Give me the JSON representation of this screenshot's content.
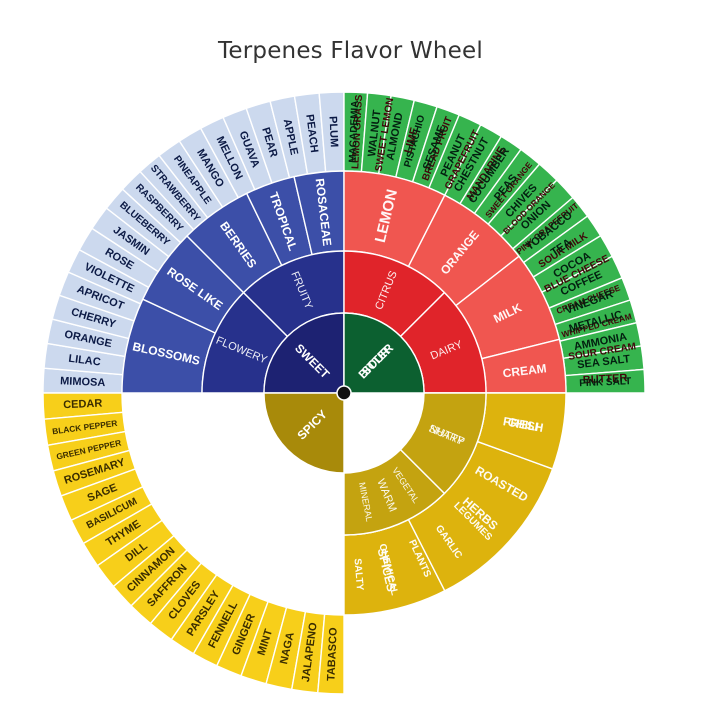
{
  "title": "Terpenes Flavor Wheel",
  "palette": {
    "sweet": {
      "center": "#1d2272",
      "mid": "#27318c",
      "outer": "#3c4fa8",
      "leaf": "#ccd9ee",
      "ink": "#0c1a45"
    },
    "sour": {
      "center": "#b8141c",
      "mid": "#e0242a",
      "outer": "#f05650",
      "leaf": "#f7a3a1",
      "ink": "#40070a"
    },
    "bitter": {
      "center": "#0c6030",
      "mid": "#118a3d",
      "outer": "#23a54b",
      "leaf": "#36b44e",
      "ink": "#032010"
    },
    "spicy": {
      "center": "#a88a0a",
      "mid": "#c4a310",
      "outer": "#ddb30d",
      "leaf": "#f7cf1a",
      "ink": "#3a2d00"
    }
  },
  "center_text": [
    "SWEET",
    "SOUR",
    "BITTER",
    "SPICY"
  ],
  "ring2": [
    {
      "label": "FLOWERY",
      "q": 0,
      "a1": 0,
      "a2": 45
    },
    {
      "label": "FRUITY",
      "q": 0,
      "a1": 45,
      "a2": 90
    },
    {
      "label": "CITRUS",
      "q": 1,
      "a1": 0,
      "a2": 45
    },
    {
      "label": "DAIRY",
      "q": 1,
      "a1": 45,
      "a2": 90
    },
    {
      "label": "NUTTY",
      "q": 2,
      "a1": 90,
      "a2": 135
    },
    {
      "label": "VEGETAL",
      "q": 2,
      "a1": 135,
      "a2": 157.5
    },
    {
      "label": "MINERAL",
      "q": 2,
      "a1": 157.5,
      "a2": 180
    },
    {
      "label": "WARM",
      "q": 3,
      "a1": 90,
      "a2": 135
    },
    {
      "label": "SHARP",
      "q": 3,
      "a1": 135,
      "a2": 180
    }
  ],
  "ring3": [
    {
      "label": "BLOSSOMS",
      "q": 0,
      "a1": 0,
      "a2": 25
    },
    {
      "label": "ROSE LIKE",
      "q": 0,
      "a1": 25,
      "a2": 45
    },
    {
      "label": "BERRIES",
      "q": 0,
      "a1": 45,
      "a2": 64
    },
    {
      "label": "TROPICAL",
      "q": 0,
      "a1": 64,
      "a2": 77
    },
    {
      "label": "ROSACEAE",
      "q": 0,
      "a1": 77,
      "a2": 90
    },
    {
      "label": "LEMON",
      "q": 1,
      "a1": 0,
      "a2": 27
    },
    {
      "label": "ORANGE",
      "q": 1,
      "a1": 27,
      "a2": 52
    },
    {
      "label": "MILK",
      "q": 1,
      "a1": 52,
      "a2": 76
    },
    {
      "label": "CREAM",
      "q": 1,
      "a1": 76,
      "a2": 90
    },
    {
      "label": "FRESH",
      "q": 2,
      "a1": 90,
      "a2": 110
    },
    {
      "label": "ROASTED",
      "q": 2,
      "a1": 110,
      "a2": 130
    },
    {
      "label": "LEGUMES",
      "q": 2,
      "a1": 130,
      "a2": 140
    },
    {
      "label": "GARLIC",
      "q": 2,
      "a1": 140,
      "a2": 150
    },
    {
      "label": "PLANTS",
      "q": 2,
      "a1": 150,
      "a2": 161
    },
    {
      "label": "CHEMICAL",
      "q": 2,
      "a1": 161,
      "a2": 171
    },
    {
      "label": "SALTY",
      "q": 2,
      "a1": 171,
      "a2": 180
    },
    {
      "label": "SPICES",
      "q": 3,
      "a1": 90,
      "a2": 117
    },
    {
      "label": "HERBS",
      "q": 3,
      "a1": 117,
      "a2": 160
    },
    {
      "label": "CHILI",
      "q": 3,
      "a1": 160,
      "a2": 180
    }
  ],
  "ring4": [
    {
      "q": 0,
      "items": [
        "MIMOSA",
        "LILAC",
        "ORANGE",
        "CHERRY",
        "APRICOT",
        "VIOLETTE",
        "ROSE",
        "JASMIN",
        "BLUEBERRY",
        "RASPBERRY",
        "STRAWBERRY",
        "PINEAPPLE",
        "MANGO",
        "MELLON",
        "GUAVA",
        "PEAR",
        "APPLE",
        "PEACH",
        "PLUM"
      ]
    },
    {
      "q": 1,
      "items": [
        "LEMON GRASS",
        "SWEET LEMON",
        "LIME",
        "BREAD FRUIT",
        "GRAPEFRUIT",
        "MANDARINE",
        "SWEET ORANGE",
        "BLOOD ORANGE",
        "PINK GRAPEFRUIT",
        "SOUR MILK",
        "BLUE CHEESE",
        "CREAM CHEESE",
        "WHIPPED CREAM",
        "SOUR CREAM",
        "BUTTER"
      ]
    },
    {
      "q": 2,
      "items": [
        "MACADEMIA",
        "WALNUT",
        "ALMOND",
        "PISTACHIO",
        "SESAME",
        "PEANUT",
        "CHESTNUT",
        "CUCUMBER",
        "PEAS",
        "CHIVES",
        "ONION",
        "TOBACCO",
        "TEA",
        "COCOA",
        "COFFEE",
        "VINEGAR",
        "METALLIC",
        "AMMONIA",
        "SEA SALT",
        "PINK SALT"
      ]
    },
    {
      "q": 3,
      "items": [
        "CEDAR",
        "BLACK PEPPER",
        "GREEN PEPPER",
        "ROSEMARY",
        "SAGE",
        "BASILICUM",
        "THYME",
        "DILL",
        "CINNAMON",
        "SAFFRON",
        "CLOVES",
        "PARSLEY",
        "FENNELL",
        "GINGER",
        "MINT",
        "NAGA",
        "JALAPENO",
        "TABASCO"
      ]
    }
  ]
}
